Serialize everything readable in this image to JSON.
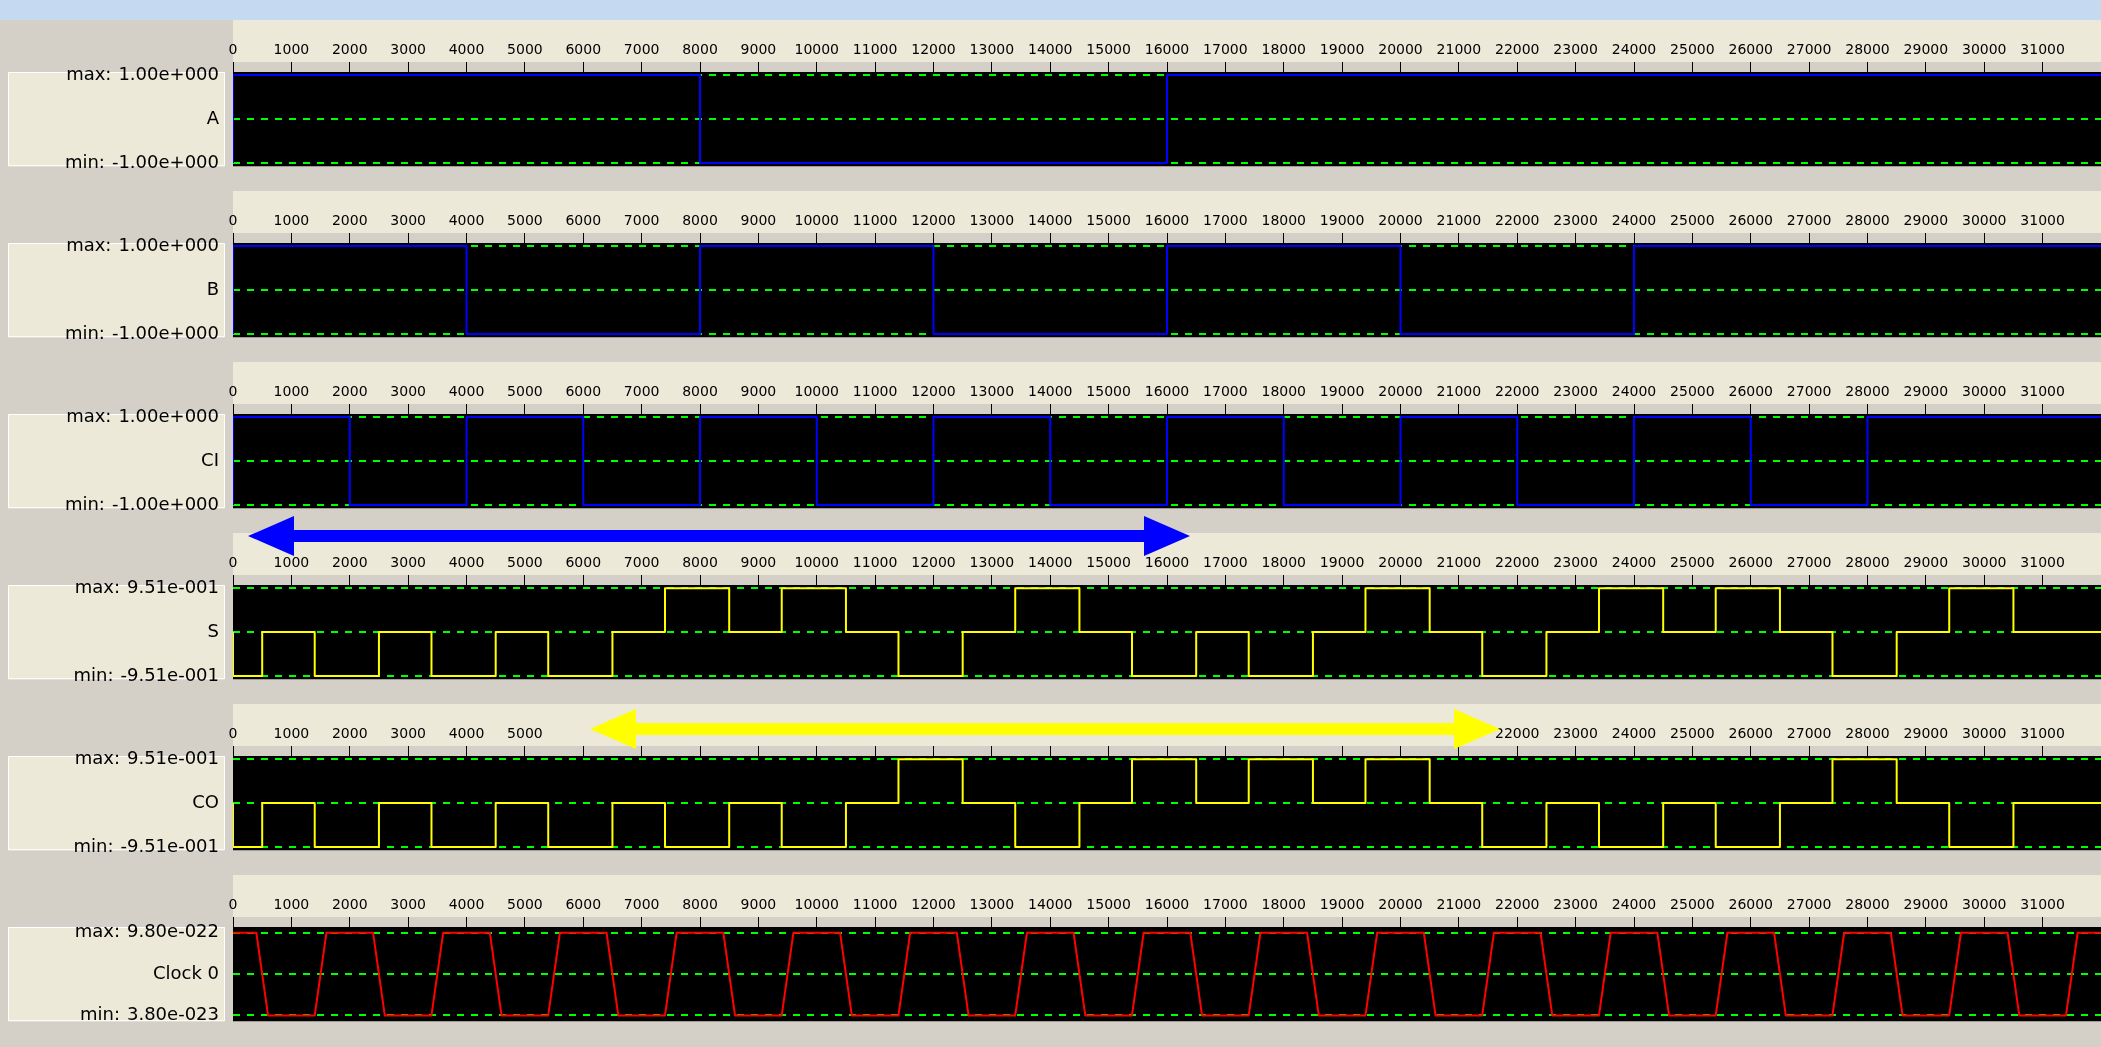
{
  "chart_data": [
    {
      "type": "step",
      "ylabel": "A",
      "x": [
        0,
        8000,
        16000,
        24000,
        32000
      ],
      "xlim": [
        0,
        32000
      ],
      "xticks": [
        0,
        1000,
        2000,
        3000,
        4000,
        5000,
        6000,
        7000,
        8000,
        9000,
        10000,
        11000,
        12000,
        13000,
        14000,
        15000,
        16000,
        17000,
        18000,
        19000,
        20000,
        21000,
        22000,
        23000,
        24000,
        25000,
        26000,
        27000,
        28000,
        29000,
        30000,
        31000
      ],
      "ylim": [
        -1.07,
        1.07
      ],
      "yticks": [
        {
          "value": -1,
          "label": "-1.00e+000"
        },
        {
          "value": 0,
          "label": null
        },
        {
          "value": 1,
          "label": "1.00e+000"
        }
      ],
      "annotations": [
        "max:",
        "min:"
      ],
      "grid": "y",
      "series": [
        {
          "color": "#0000ff",
          "values": [
            -1,
            1,
            -1,
            1,
            1
          ]
        }
      ]
    },
    {
      "type": "step",
      "ylabel": "B",
      "x": [
        0,
        4000,
        8000,
        12000,
        16000,
        20000,
        24000,
        28000,
        32000
      ],
      "xlim": [
        0,
        32000
      ],
      "xticks": [
        0,
        1000,
        2000,
        3000,
        4000,
        5000,
        6000,
        7000,
        8000,
        9000,
        10000,
        11000,
        12000,
        13000,
        14000,
        15000,
        16000,
        17000,
        18000,
        19000,
        20000,
        21000,
        22000,
        23000,
        24000,
        25000,
        26000,
        27000,
        28000,
        29000,
        30000,
        31000
      ],
      "ylim": [
        -1.07,
        1.07
      ],
      "yticks": [
        {
          "value": -1,
          "label": "-1.00e+000"
        },
        {
          "value": 0,
          "label": null
        },
        {
          "value": 1,
          "label": "1.00e+000"
        }
      ],
      "annotations": [
        "max:",
        "min:"
      ],
      "grid": "y",
      "series": [
        {
          "color": "#0000ff",
          "values": [
            -1,
            1,
            -1,
            1,
            -1,
            1,
            -1,
            1,
            1
          ]
        }
      ]
    },
    {
      "type": "step",
      "ylabel": "CI",
      "x": [
        0,
        2000,
        4000,
        6000,
        8000,
        10000,
        12000,
        14000,
        16000,
        18000,
        20000,
        22000,
        24000,
        26000,
        28000,
        30000,
        32000
      ],
      "xlim": [
        0,
        32000
      ],
      "xticks": [
        0,
        1000,
        2000,
        3000,
        4000,
        5000,
        6000,
        7000,
        8000,
        9000,
        10000,
        11000,
        12000,
        13000,
        14000,
        15000,
        16000,
        17000,
        18000,
        19000,
        20000,
        21000,
        22000,
        23000,
        24000,
        25000,
        26000,
        27000,
        28000,
        29000,
        30000,
        31000
      ],
      "ylim": [
        -1.07,
        1.07
      ],
      "yticks": [
        {
          "value": -1,
          "label": "-1.00e+000"
        },
        {
          "value": 0,
          "label": null
        },
        {
          "value": 1,
          "label": "1.00e+000"
        }
      ],
      "annotations": [
        "max:",
        "min:"
      ],
      "grid": "y",
      "series": [
        {
          "color": "#0000ff",
          "values": [
            -1,
            1,
            -1,
            1,
            -1,
            1,
            -1,
            1,
            -1,
            1,
            -1,
            1,
            -1,
            1,
            -1,
            1,
            1
          ]
        }
      ]
    },
    {
      "type": "step",
      "ylabel": "S",
      "x": [
        0,
        500,
        1400,
        2500,
        3400,
        4500,
        5400,
        6500,
        7400,
        8500,
        9400,
        10500,
        11400,
        12500,
        13400,
        14500,
        15400,
        16500,
        17400,
        18500,
        19400,
        20500,
        21400,
        22500,
        23400,
        24500,
        25400,
        26500,
        27400,
        28500,
        29400,
        30500,
        31400,
        32000
      ],
      "xlim": [
        0,
        32000
      ],
      "xticks": [
        0,
        1000,
        2000,
        3000,
        4000,
        5000,
        6000,
        7000,
        8000,
        9000,
        10000,
        11000,
        12000,
        13000,
        14000,
        15000,
        16000,
        17000,
        18000,
        19000,
        20000,
        21000,
        22000,
        23000,
        24000,
        25000,
        26000,
        27000,
        28000,
        29000,
        30000,
        31000
      ],
      "ylim": [
        -1.02,
        1.02
      ],
      "yticks": [
        {
          "value": -0.951,
          "label": "-9.51e-001"
        },
        {
          "value": 0,
          "label": null
        },
        {
          "value": 0.951,
          "label": "9.51e-001"
        }
      ],
      "annotations": [
        "max:",
        "min:"
      ],
      "grid": "y",
      "series": [
        {
          "color": "#ffff00",
          "values": [
            0,
            -0.951,
            0,
            -0.951,
            0,
            -0.951,
            0,
            -0.951,
            0,
            0.951,
            0,
            0.951,
            0,
            -0.951,
            0,
            0.951,
            0,
            -0.951,
            0,
            -0.951,
            0,
            0.951,
            0,
            -0.951,
            0,
            0.951,
            0,
            0.951,
            0,
            -0.951,
            0,
            0.951,
            0,
            0
          ]
        }
      ]
    },
    {
      "type": "step",
      "ylabel": "CO",
      "x": [
        0,
        500,
        1400,
        2500,
        3400,
        4500,
        5400,
        6500,
        7400,
        8500,
        9400,
        10500,
        11400,
        12500,
        13400,
        14500,
        15400,
        16500,
        17400,
        18500,
        19400,
        20500,
        21400,
        22500,
        23400,
        24500,
        25400,
        26500,
        27400,
        28500,
        29400,
        30500,
        31400,
        32000
      ],
      "xlim": [
        0,
        32000
      ],
      "xticks": [
        0,
        1000,
        2000,
        3000,
        4000,
        5000,
        {
          "value": 6000,
          "label": null
        },
        {
          "value": 7000,
          "label": null
        },
        {
          "value": 8000,
          "label": null
        },
        {
          "value": 9000,
          "label": null
        },
        {
          "value": 10000,
          "label": null
        },
        {
          "value": 11000,
          "label": null
        },
        {
          "value": 12000,
          "label": null
        },
        {
          "value": 13000,
          "label": null
        },
        {
          "value": 14000,
          "label": null
        },
        {
          "value": 15000,
          "label": null
        },
        {
          "value": 16000,
          "label": null
        },
        {
          "value": 17000,
          "label": null
        },
        {
          "value": 18000,
          "label": null
        },
        {
          "value": 19000,
          "label": null
        },
        {
          "value": 20000,
          "label": null
        },
        {
          "value": 21000,
          "label": null
        },
        22000,
        23000,
        24000,
        25000,
        26000,
        27000,
        28000,
        29000,
        30000,
        31000
      ],
      "ylim": [
        -1.02,
        1.02
      ],
      "yticks": [
        {
          "value": -0.951,
          "label": "-9.51e-001"
        },
        {
          "value": 0,
          "label": null
        },
        {
          "value": 0.951,
          "label": "9.51e-001"
        }
      ],
      "annotations": [
        "max:",
        "min:"
      ],
      "grid": "y",
      "series": [
        {
          "color": "#ffff00",
          "values": [
            0,
            -0.951,
            0,
            -0.951,
            0,
            -0.951,
            0,
            -0.951,
            0,
            -0.951,
            0,
            -0.951,
            0,
            0.951,
            0,
            -0.951,
            0,
            0.951,
            0,
            0.951,
            0,
            0.951,
            0,
            -0.951,
            0,
            -0.951,
            0,
            -0.951,
            0,
            0.951,
            0,
            -0.951,
            0,
            0
          ]
        }
      ]
    },
    {
      "type": "line",
      "ylabel": "Clock 0",
      "x": [
        0,
        400,
        600,
        1400,
        1600,
        2400,
        2600,
        3400,
        3600,
        4400,
        4600,
        5400,
        5600,
        6400,
        6600,
        7400,
        7600,
        8400,
        8600,
        9400,
        9600,
        10400,
        10600,
        11400,
        11600,
        12400,
        12600,
        13400,
        13600,
        14400,
        14600,
        15400,
        15600,
        16400,
        16600,
        17400,
        17600,
        18400,
        18600,
        19400,
        19600,
        20400,
        20600,
        21400,
        21600,
        22400,
        22600,
        23400,
        23600,
        24400,
        24600,
        25400,
        25600,
        26400,
        26600,
        27400,
        27600,
        28400,
        28600,
        29400,
        29600,
        30400,
        30600,
        31400,
        31600,
        32000
      ],
      "xlim": [
        0,
        32000
      ],
      "xticks": [
        0,
        1000,
        2000,
        3000,
        4000,
        5000,
        6000,
        7000,
        8000,
        9000,
        10000,
        11000,
        12000,
        13000,
        14000,
        15000,
        16000,
        17000,
        18000,
        19000,
        20000,
        21000,
        22000,
        23000,
        24000,
        25000,
        26000,
        27000,
        28000,
        29000,
        30000,
        31000
      ],
      "ylim": [
        -2.8e-23,
        1.046e-21
      ],
      "yticks": [
        {
          "value": 3.8e-23,
          "label": "3.80e-023"
        },
        {
          "value": 5.09e-22,
          "label": null
        },
        {
          "value": 9.8e-22,
          "label": "9.80e-022"
        }
      ],
      "annotations": [
        "max:",
        "min:"
      ],
      "grid": "y",
      "series": [
        {
          "color": "#ff0000",
          "values": [
            9.8e-22,
            9.8e-22,
            3.8e-23,
            3.8e-23,
            9.8e-22,
            9.8e-22,
            3.8e-23,
            3.8e-23,
            9.8e-22,
            9.8e-22,
            3.8e-23,
            3.8e-23,
            9.8e-22,
            9.8e-22,
            3.8e-23,
            3.8e-23,
            9.8e-22,
            9.8e-22,
            3.8e-23,
            3.8e-23,
            9.8e-22,
            9.8e-22,
            3.8e-23,
            3.8e-23,
            9.8e-22,
            9.8e-22,
            3.8e-23,
            3.8e-23,
            9.8e-22,
            9.8e-22,
            3.8e-23,
            3.8e-23,
            9.8e-22,
            9.8e-22,
            3.8e-23,
            3.8e-23,
            9.8e-22,
            9.8e-22,
            3.8e-23,
            3.8e-23,
            9.8e-22,
            9.8e-22,
            3.8e-23,
            3.8e-23,
            9.8e-22,
            9.8e-22,
            3.8e-23,
            3.8e-23,
            9.8e-22,
            9.8e-22,
            3.8e-23,
            3.8e-23,
            9.8e-22,
            9.8e-22,
            3.8e-23,
            3.8e-23,
            9.8e-22,
            9.8e-22,
            3.8e-23,
            3.8e-23,
            9.8e-22,
            9.8e-22,
            3.8e-23,
            3.8e-23,
            9.8e-22,
            9.8e-22
          ]
        }
      ]
    }
  ]
}
